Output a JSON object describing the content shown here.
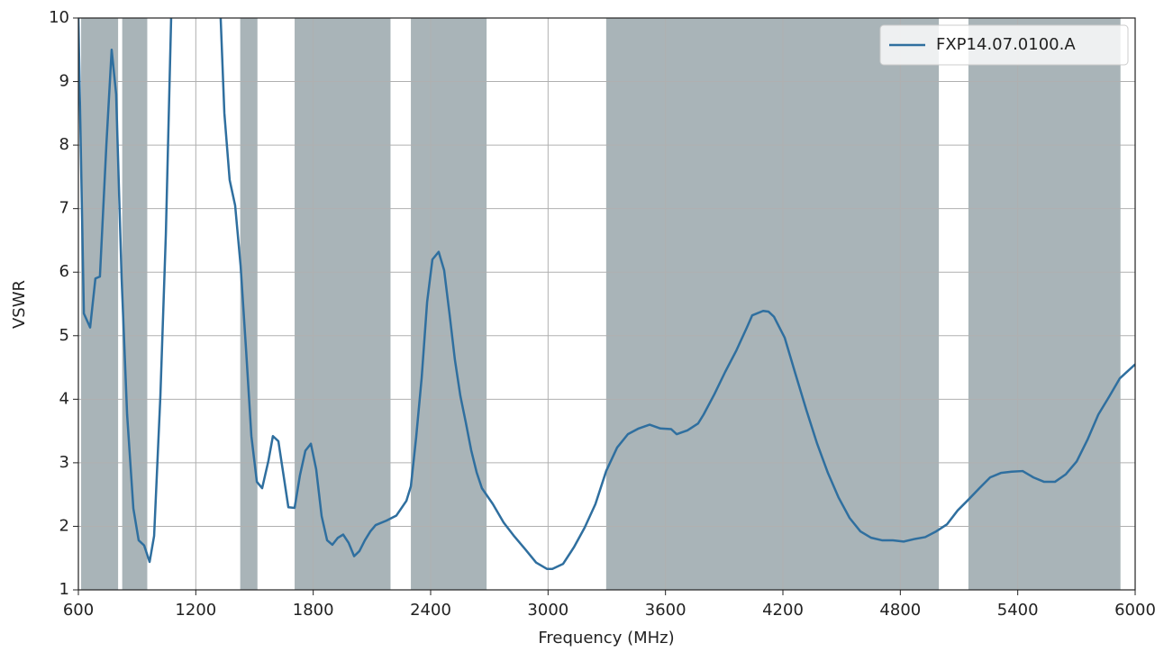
{
  "chart_data": {
    "type": "line",
    "xlabel": "Frequency (MHz)",
    "ylabel": "VSWR",
    "xlim": [
      600,
      6000
    ],
    "ylim": [
      1,
      10
    ],
    "xticks": [
      600,
      1200,
      1800,
      2400,
      3000,
      3600,
      4200,
      4800,
      5400,
      6000
    ],
    "yticks": [
      1,
      2,
      3,
      4,
      5,
      6,
      7,
      8,
      9,
      10
    ],
    "grid": true,
    "legend": "upper right",
    "band_color": "#a9b4b8",
    "bands": [
      [
        614,
        803
      ],
      [
        824,
        952
      ],
      [
        1427,
        1515
      ],
      [
        1705,
        2195
      ],
      [
        2299,
        2686
      ],
      [
        3297,
        4997
      ],
      [
        5148,
        5925
      ]
    ],
    "x": [
      600,
      628,
      660,
      687,
      710,
      743,
      770,
      793,
      821,
      849,
      881,
      908,
      936,
      964,
      987,
      1019,
      1047,
      1074,
      1200,
      1327,
      1346,
      1373,
      1401,
      1429,
      1457,
      1484,
      1512,
      1539,
      1571,
      1594,
      1622,
      1650,
      1673,
      1705,
      1732,
      1760,
      1788,
      1815,
      1843,
      1871,
      1898,
      1926,
      1953,
      1981,
      2009,
      2036,
      2064,
      2092,
      2119,
      2174,
      2225,
      2276,
      2299,
      2326,
      2354,
      2382,
      2409,
      2441,
      2469,
      2497,
      2524,
      2552,
      2580,
      2607,
      2635,
      2662,
      2718,
      2773,
      2828,
      2883,
      2939,
      2994,
      3022,
      3077,
      3132,
      3187,
      3242,
      3297,
      3353,
      3408,
      3463,
      3519,
      3574,
      3629,
      3657,
      3684,
      3712,
      3767,
      3795,
      3850,
      3905,
      3961,
      4016,
      4043,
      4099,
      4126,
      4154,
      4209,
      4264,
      4320,
      4375,
      4430,
      4485,
      4541,
      4596,
      4651,
      4706,
      4762,
      4817,
      4872,
      4927,
      4983,
      5038,
      5093,
      5148,
      5204,
      5259,
      5314,
      5369,
      5425,
      5480,
      5535,
      5590,
      5646,
      5701,
      5756,
      5812,
      5867,
      5922,
      6000
    ],
    "series": [
      {
        "name": "FXP14.07.0100.A",
        "color": "#2f6f9f",
        "values": [
          10,
          5.35,
          5.13,
          5.9,
          5.93,
          8.0,
          9.5,
          8.8,
          5.9,
          3.76,
          2.28,
          1.78,
          1.7,
          1.44,
          1.85,
          4.05,
          6.6,
          10,
          null,
          10,
          8.5,
          7.45,
          7.05,
          6.1,
          4.77,
          3.42,
          2.7,
          2.6,
          3.03,
          3.42,
          3.34,
          2.77,
          2.3,
          2.29,
          2.8,
          3.19,
          3.3,
          2.9,
          2.16,
          1.78,
          1.71,
          1.82,
          1.87,
          1.74,
          1.53,
          1.61,
          1.78,
          1.92,
          2.02,
          2.09,
          2.17,
          2.4,
          2.63,
          3.4,
          4.33,
          5.53,
          6.2,
          6.32,
          6.03,
          5.33,
          4.62,
          4.05,
          3.63,
          3.2,
          2.85,
          2.6,
          2.35,
          2.06,
          1.84,
          1.64,
          1.43,
          1.33,
          1.33,
          1.41,
          1.67,
          1.98,
          2.35,
          2.87,
          3.24,
          3.45,
          3.54,
          3.6,
          3.54,
          3.53,
          3.45,
          3.48,
          3.51,
          3.62,
          3.76,
          4.08,
          4.43,
          4.76,
          5.13,
          5.32,
          5.39,
          5.38,
          5.3,
          4.97,
          4.4,
          3.83,
          3.3,
          2.84,
          2.45,
          2.13,
          1.92,
          1.82,
          1.78,
          1.78,
          1.76,
          1.8,
          1.83,
          1.92,
          2.03,
          2.25,
          2.42,
          2.6,
          2.77,
          2.84,
          2.86,
          2.87,
          2.77,
          2.7,
          2.7,
          2.82,
          3.02,
          3.36,
          3.76,
          4.04,
          4.33,
          4.55
        ]
      }
    ]
  }
}
